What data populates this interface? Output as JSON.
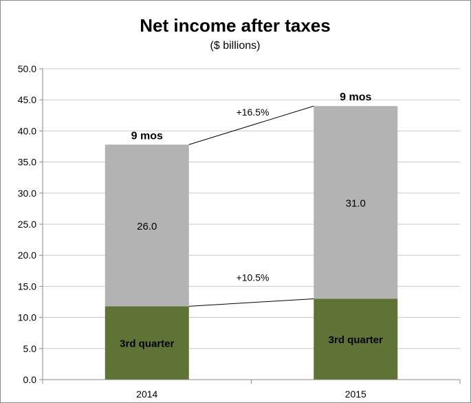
{
  "chart_data": {
    "type": "bar",
    "stacked": true,
    "title": "Net income after taxes",
    "subtitle": "($ billions)",
    "categories": [
      "2014",
      "2015"
    ],
    "ylim": [
      0,
      50
    ],
    "yticks": [
      "0.0",
      "5.0",
      "10.0",
      "15.0",
      "20.0",
      "25.0",
      "30.0",
      "35.0",
      "40.0",
      "45.0",
      "50.0"
    ],
    "grid": true,
    "series": [
      {
        "name": "3rd quarter",
        "values": [
          11.8,
          13.0
        ],
        "color": "#607336",
        "label_texts": [
          "3rd quarter",
          "3rd quarter"
        ]
      },
      {
        "values": [
          26.0,
          31.0
        ],
        "color": "#b3b3b3",
        "label_texts": [
          "26.0",
          "31.0"
        ]
      }
    ],
    "total_labels": [
      "9 mos",
      "9 mos"
    ],
    "growth_annotations": [
      {
        "text": "+16.5%",
        "between": "top"
      },
      {
        "text": "+10.5%",
        "between": "bottom"
      }
    ]
  }
}
